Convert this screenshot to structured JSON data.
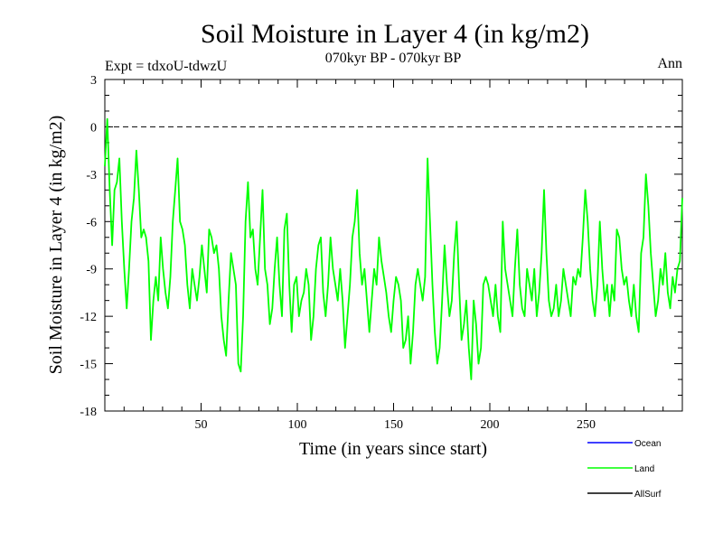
{
  "chart_data": {
    "type": "line",
    "title": "Soil Moisture in Layer 4 (in kg/m2)",
    "subtitle": "070kyr BP - 070kyr BP",
    "expt_label": "Expt = tdxoU-tdwzU",
    "season_label": "Ann",
    "xlabel": "Time (in years since start)",
    "ylabel": "Soil Moisture in Layer 4 (in kg/m2)",
    "xlim": [
      0,
      300
    ],
    "ylim": [
      -18,
      3
    ],
    "xticks": [
      50,
      100,
      150,
      200,
      250
    ],
    "yticks": [
      3,
      0,
      -3,
      -6,
      -9,
      -12,
      -15,
      -18
    ],
    "reference_line": 0,
    "series": [
      {
        "name": "Ocean",
        "color": "#0000ff",
        "values": []
      },
      {
        "name": "Land",
        "color": "#00ff00",
        "values": [
          -2.5,
          0.5,
          -4,
          -7.5,
          -4,
          -3.5,
          -2,
          -6,
          -9,
          -11.5,
          -9,
          -6,
          -4.5,
          -1.5,
          -4,
          -7,
          -6.5,
          -7,
          -8.5,
          -13.5,
          -11,
          -9.5,
          -11,
          -7,
          -9,
          -10.5,
          -11.5,
          -9.5,
          -6,
          -4,
          -2,
          -6,
          -6.5,
          -7.5,
          -10,
          -11.5,
          -9,
          -10,
          -11,
          -9.5,
          -7.5,
          -9,
          -10.5,
          -6.5,
          -7,
          -8,
          -7.5,
          -9,
          -12,
          -13.5,
          -14.5,
          -11,
          -8,
          -9,
          -10,
          -15,
          -15.5,
          -12,
          -6,
          -3.5,
          -7,
          -6.5,
          -9,
          -10,
          -7,
          -4,
          -9,
          -10,
          -12.5,
          -11.5,
          -9,
          -7,
          -10,
          -12,
          -6.5,
          -5.5,
          -10,
          -13,
          -10,
          -9.5,
          -12,
          -11,
          -10.5,
          -9,
          -10,
          -13.5,
          -12,
          -9,
          -7.5,
          -7,
          -10.5,
          -12,
          -10,
          -7,
          -9,
          -10,
          -11,
          -9,
          -11,
          -14,
          -12,
          -10,
          -7,
          -6,
          -4,
          -8,
          -10,
          -9,
          -11,
          -13,
          -11,
          -9,
          -10,
          -7,
          -8.5,
          -9.5,
          -10.5,
          -12,
          -13,
          -11,
          -9.5,
          -10,
          -11,
          -14,
          -13.5,
          -12,
          -15,
          -13,
          -10,
          -9,
          -10,
          -11,
          -9.5,
          -2,
          -6,
          -10,
          -13,
          -15,
          -14,
          -11,
          -7.5,
          -10,
          -12,
          -11,
          -8,
          -6,
          -10,
          -13.5,
          -12.5,
          -11,
          -14,
          -16,
          -11,
          -12.5,
          -15,
          -14,
          -10,
          -9.5,
          -10,
          -11,
          -12,
          -10,
          -12,
          -13,
          -6,
          -9,
          -10,
          -11,
          -12,
          -9,
          -6.5,
          -10,
          -11.5,
          -12,
          -9,
          -10,
          -11,
          -9,
          -12,
          -10.5,
          -8,
          -4,
          -8,
          -11,
          -12,
          -11.5,
          -10,
          -12,
          -11,
          -9,
          -10,
          -11,
          -12,
          -9.5,
          -10,
          -9,
          -9.5,
          -7,
          -4,
          -6,
          -9,
          -11,
          -12,
          -10,
          -6,
          -9,
          -11,
          -10,
          -12,
          -10,
          -11,
          -6.5,
          -7,
          -9,
          -10,
          -9.5,
          -11,
          -12,
          -10,
          -12,
          -13,
          -8,
          -7,
          -3,
          -5,
          -8,
          -10,
          -12,
          -11,
          -9,
          -10,
          -8,
          -10.5,
          -11.5,
          -9.5,
          -10.5,
          -9,
          -8.5,
          -4.5
        ]
      },
      {
        "name": "AllSurf",
        "color": "#000000",
        "values": []
      }
    ],
    "grid": false,
    "legend_position": "bottom-right"
  }
}
